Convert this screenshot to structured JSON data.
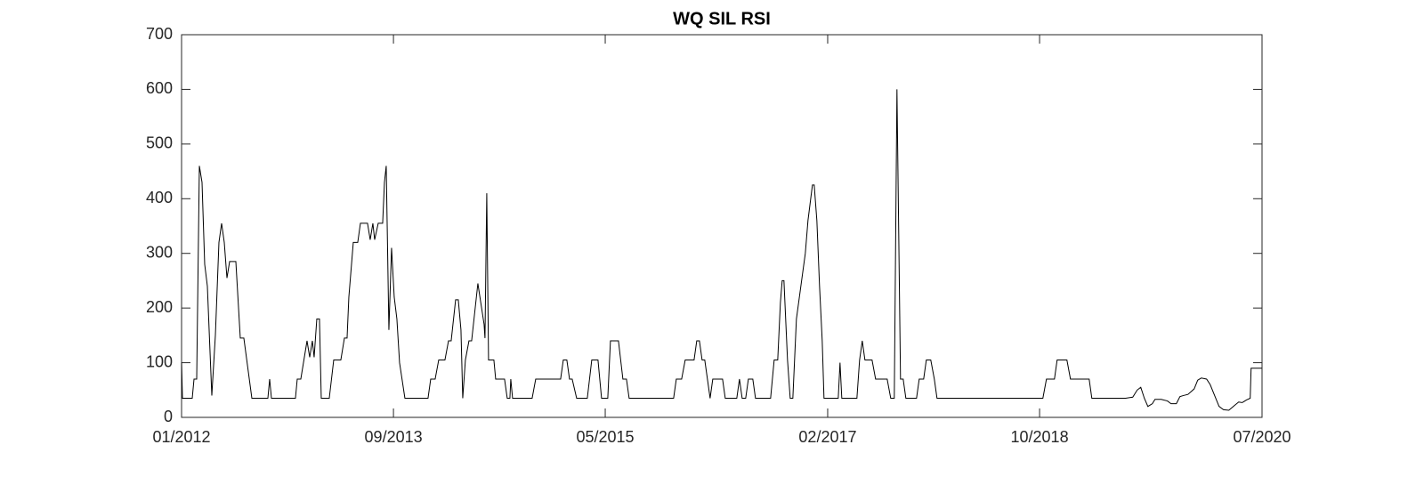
{
  "chart_data": {
    "type": "line",
    "title": "WQ SIL RSI",
    "xlim": [
      2012.0,
      2020.5
    ],
    "xticks": [
      {
        "value": 2012.0,
        "label": "01/2012"
      },
      {
        "value": 2013.667,
        "label": "09/2013"
      },
      {
        "value": 2015.333,
        "label": "05/2015"
      },
      {
        "value": 2017.083,
        "label": "02/2017"
      },
      {
        "value": 2018.75,
        "label": "10/2018"
      },
      {
        "value": 2020.5,
        "label": "07/2020"
      }
    ],
    "ylim": [
      0,
      700
    ],
    "yticks": [
      0,
      100,
      200,
      300,
      400,
      500,
      600,
      700
    ],
    "grid": false,
    "series": [
      {
        "color": "#000000",
        "x": [
          2012.0,
          2012.007,
          2012.084,
          2012.098,
          2012.119,
          2012.14,
          2012.161,
          2012.182,
          2012.203,
          2012.238,
          2012.266,
          2012.294,
          2012.315,
          2012.336,
          2012.357,
          2012.378,
          2012.427,
          2012.462,
          2012.49,
          2012.553,
          2012.679,
          2012.693,
          2012.707,
          2012.896,
          2012.91,
          2012.938,
          2012.987,
          2013.008,
          2013.029,
          2013.043,
          2013.064,
          2013.085,
          2013.099,
          2013.162,
          2013.197,
          2013.253,
          2013.281,
          2013.302,
          2013.316,
          2013.351,
          2013.386,
          2013.407,
          2013.463,
          2013.484,
          2013.505,
          2013.519,
          2013.547,
          2013.582,
          2013.596,
          2013.61,
          2013.631,
          2013.652,
          2013.673,
          2013.694,
          2013.715,
          2013.757,
          2013.939,
          2013.96,
          2013.995,
          2014.023,
          2014.072,
          2014.1,
          2014.121,
          2014.156,
          2014.177,
          2014.198,
          2014.212,
          2014.233,
          2014.261,
          2014.282,
          2014.331,
          2014.38,
          2014.387,
          2014.401,
          2014.415,
          2014.457,
          2014.471,
          2014.541,
          2014.562,
          2014.583,
          2014.59,
          2014.604,
          2014.758,
          2014.786,
          2014.982,
          2015.003,
          2015.031,
          2015.052,
          2015.073,
          2015.108,
          2015.192,
          2015.227,
          2015.276,
          2015.304,
          2015.353,
          2015.374,
          2015.437,
          2015.472,
          2015.5,
          2015.521,
          2015.871,
          2015.892,
          2015.934,
          2015.962,
          2016.032,
          2016.053,
          2016.074,
          2016.095,
          2016.116,
          2016.137,
          2016.158,
          2016.179,
          2016.256,
          2016.277,
          2016.368,
          2016.389,
          2016.41,
          2016.438,
          2016.459,
          2016.494,
          2016.515,
          2016.634,
          2016.662,
          2016.69,
          2016.711,
          2016.725,
          2016.739,
          2016.767,
          2016.788,
          2016.809,
          2016.837,
          2016.872,
          2016.907,
          2016.928,
          2016.963,
          2016.977,
          2016.998,
          2017.019,
          2017.04,
          2017.054,
          2017.166,
          2017.18,
          2017.194,
          2017.313,
          2017.334,
          2017.355,
          2017.376,
          2017.432,
          2017.46,
          2017.551,
          2017.579,
          2017.607,
          2017.628,
          2017.656,
          2017.677,
          2017.698,
          2017.782,
          2017.803,
          2017.838,
          2017.859,
          2017.894,
          2017.922,
          2017.943,
          2018.776,
          2018.804,
          2018.867,
          2018.888,
          2018.965,
          2018.993,
          2019.14,
          2019.161,
          2019.427,
          2019.483,
          2019.518,
          2019.546,
          2019.574,
          2019.602,
          2019.637,
          2019.658,
          2019.707,
          2019.756,
          2019.784,
          2019.826,
          2019.854,
          2019.882,
          2019.917,
          2019.966,
          2019.994,
          2020.022,
          2020.064,
          2020.092,
          2020.127,
          2020.162,
          2020.197,
          2020.239,
          2020.274,
          2020.316,
          2020.344,
          2020.379,
          2020.407,
          2020.414,
          2020.498
        ],
        "values": [
          100,
          35,
          35,
          70,
          70,
          460,
          430,
          280,
          240,
          40,
          150,
          320,
          355,
          320,
          255,
          285,
          285,
          145,
          145,
          35,
          35,
          70,
          35,
          35,
          70,
          70,
          140,
          110,
          140,
          110,
          180,
          180,
          35,
          35,
          105,
          105,
          145,
          145,
          220,
          320,
          320,
          355,
          355,
          325,
          355,
          325,
          355,
          355,
          430,
          460,
          160,
          310,
          220,
          180,
          100,
          35,
          35,
          70,
          70,
          105,
          105,
          140,
          140,
          215,
          215,
          160,
          35,
          105,
          140,
          140,
          245,
          170,
          145,
          410,
          105,
          105,
          70,
          70,
          35,
          35,
          70,
          35,
          35,
          70,
          70,
          105,
          105,
          70,
          70,
          35,
          35,
          105,
          105,
          35,
          35,
          140,
          140,
          70,
          70,
          35,
          35,
          70,
          70,
          105,
          105,
          140,
          140,
          105,
          105,
          70,
          35,
          70,
          70,
          35,
          35,
          70,
          35,
          35,
          70,
          70,
          35,
          35,
          105,
          105,
          210,
          250,
          250,
          105,
          35,
          35,
          180,
          240,
          300,
          360,
          425,
          425,
          360,
          240,
          140,
          35,
          35,
          100,
          35,
          35,
          105,
          140,
          105,
          105,
          70,
          70,
          35,
          35,
          600,
          70,
          70,
          35,
          35,
          70,
          70,
          105,
          105,
          70,
          35,
          35,
          70,
          70,
          105,
          105,
          70,
          70,
          35,
          35,
          37,
          50,
          55,
          35,
          20,
          25,
          33,
          33,
          30,
          25,
          25,
          38,
          40,
          42,
          52,
          68,
          72,
          70,
          60,
          40,
          20,
          14,
          13,
          20,
          28,
          27,
          32,
          35,
          90,
          90
        ]
      }
    ]
  }
}
